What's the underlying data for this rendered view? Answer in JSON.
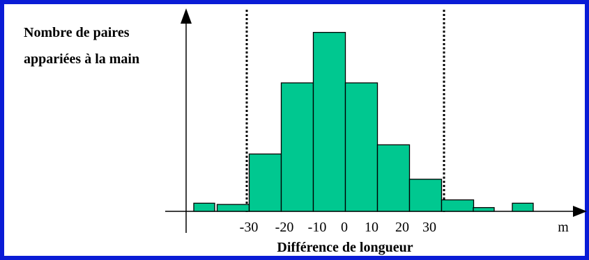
{
  "chart_data": {
    "type": "bar",
    "ylabel_lines": [
      "Nombre de paires",
      "appariées à la main"
    ],
    "xlabel": "Différence de longueur",
    "x_axis_symbol": "m",
    "x_tick_labels": [
      "-30",
      "-20",
      "-10",
      "0",
      "10",
      "20",
      "30"
    ],
    "threshold_lines": [
      -30,
      30
    ],
    "bins": [
      {
        "center": -35,
        "value": 3,
        "width": 10,
        "outlier": false
      },
      {
        "center": -25,
        "value": 25,
        "width": 10,
        "outlier": false
      },
      {
        "center": -15,
        "value": 56,
        "width": 10,
        "outlier": false
      },
      {
        "center": -5,
        "value": 78,
        "width": 10,
        "outlier": false
      },
      {
        "center": 5,
        "value": 56,
        "width": 10,
        "outlier": false
      },
      {
        "center": 15,
        "value": 29,
        "width": 10,
        "outlier": false
      },
      {
        "center": 25,
        "value": 14,
        "width": 10,
        "outlier": false
      },
      {
        "center": 35,
        "value": 5,
        "width": 10,
        "outlier": false
      }
    ],
    "outlier_bins": [
      {
        "position": "left",
        "value": 1.3
      },
      {
        "position": "right-1",
        "value": 0.6
      },
      {
        "position": "right-2",
        "value": 1.3
      }
    ],
    "colors": {
      "bar": "#00c890",
      "bar_stroke": "#000000",
      "frame": "#0a1cd6",
      "axis": "#000000"
    }
  }
}
